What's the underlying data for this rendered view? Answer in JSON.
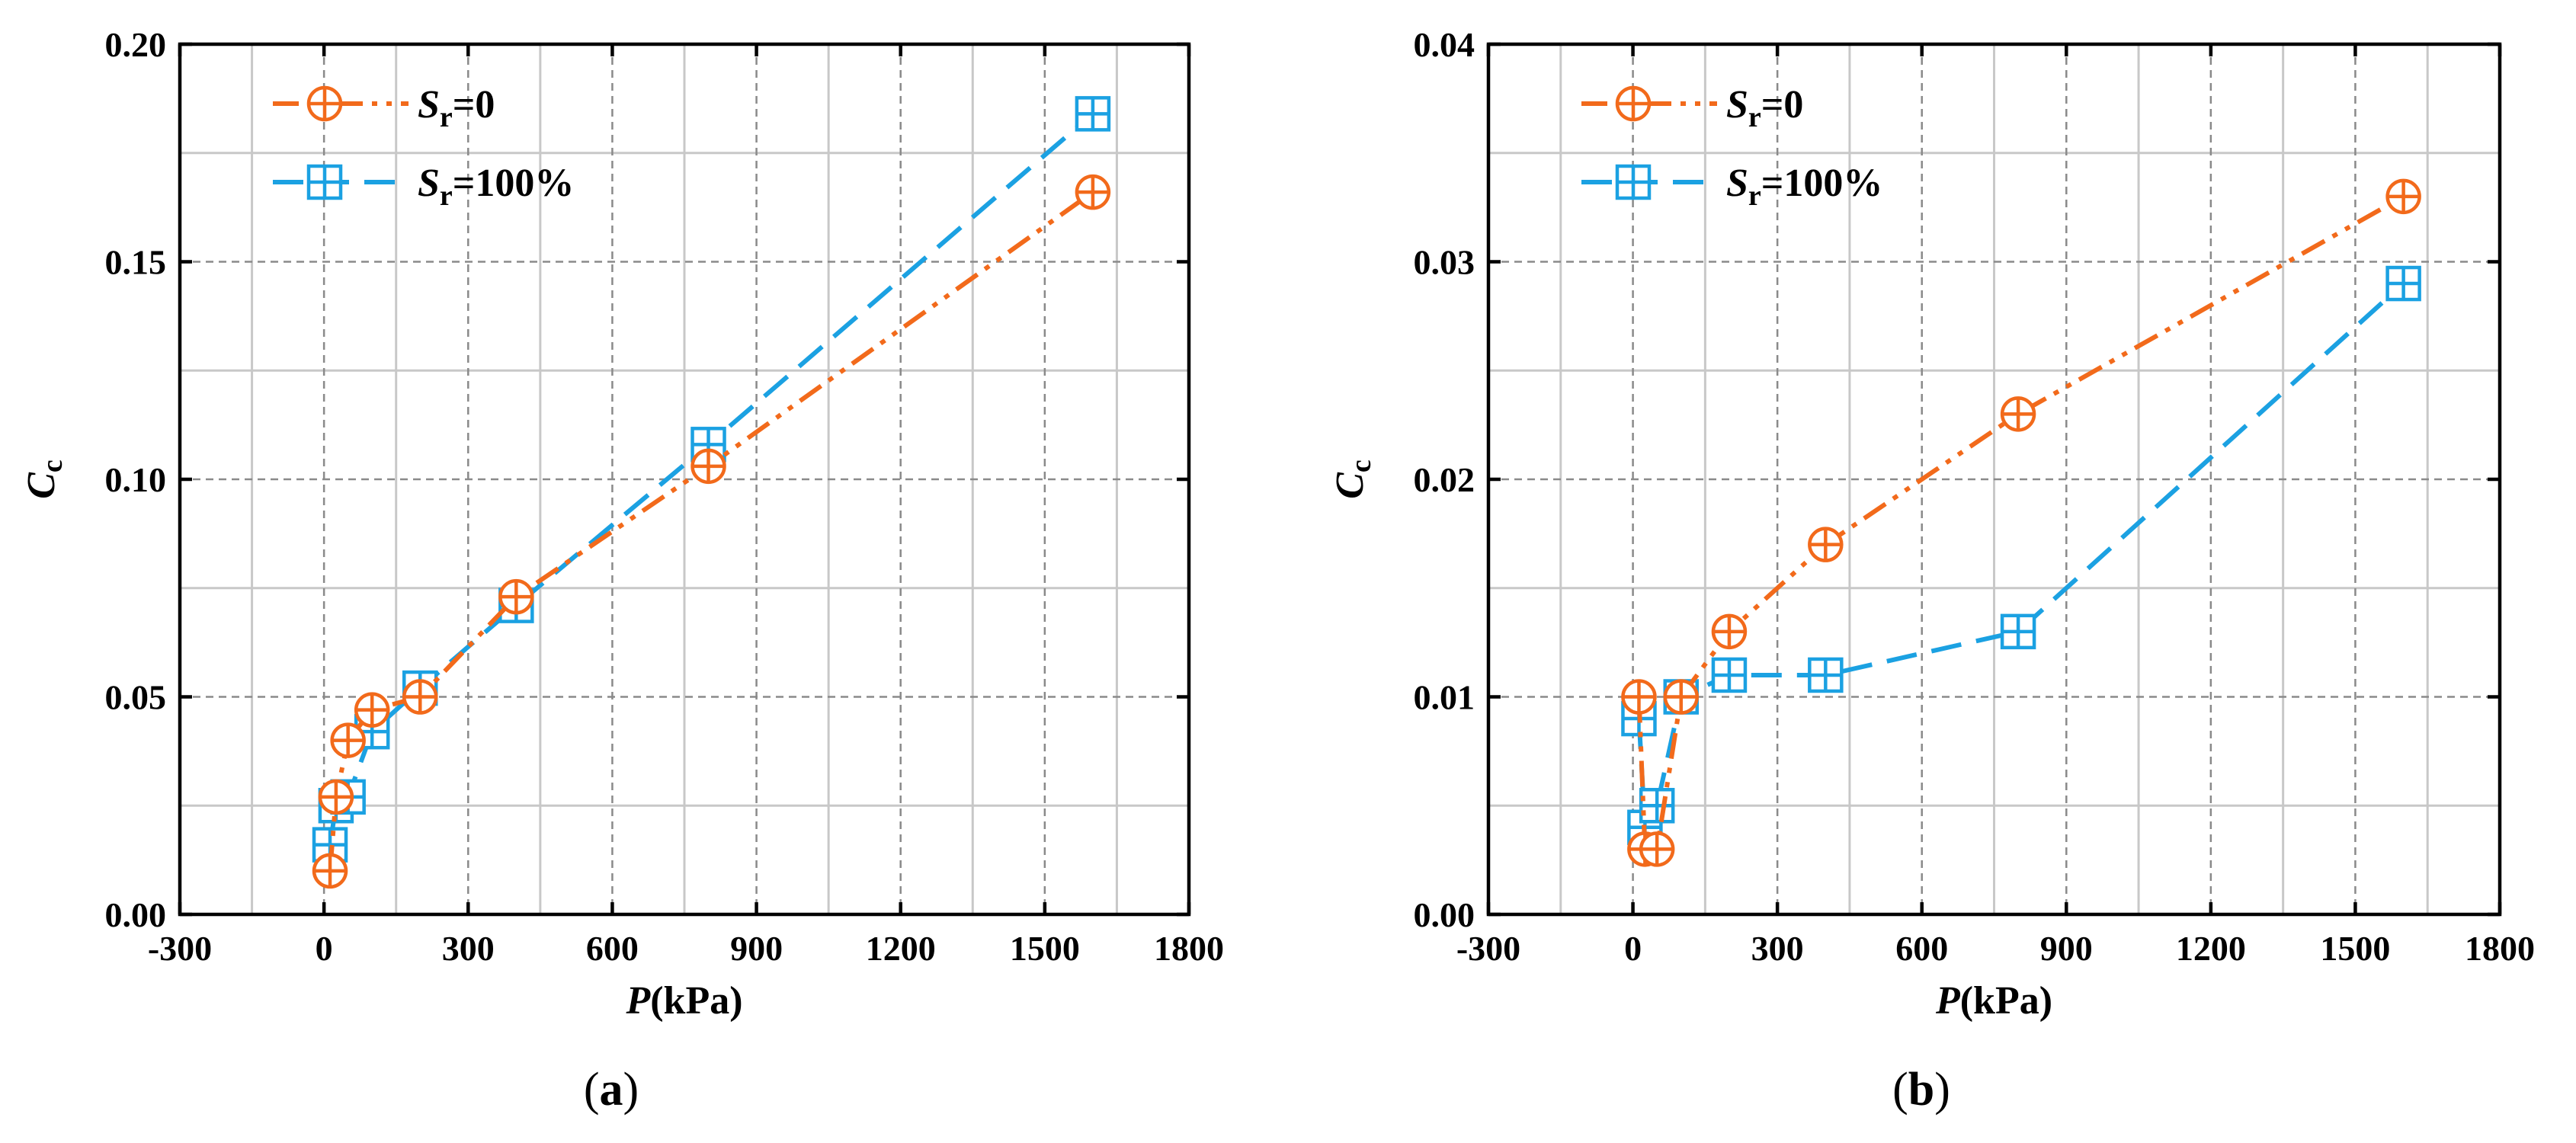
{
  "chart_data": [
    {
      "type": "line",
      "panel_label": "a",
      "ylabel": {
        "symbol": "C",
        "subscript": "c"
      },
      "xlabel": {
        "symbol": "P",
        "unit": "(kPa)"
      },
      "xlim": [
        -300,
        1800
      ],
      "ylim": [
        0,
        0.2
      ],
      "xticks": [
        "-300",
        "0",
        "300",
        "600",
        "900",
        "1200",
        "1500",
        "1800"
      ],
      "yticks": [
        "0.00",
        "0.05",
        "0.10",
        "0.15",
        "0.20"
      ],
      "grid": true,
      "legend_position": "top-left",
      "series": [
        {
          "name": "Sr=0",
          "legend": {
            "symbol": "S",
            "subscript": "r",
            "suffix": "=0"
          },
          "color": "#f26a1b",
          "marker": "circle-plus",
          "line_style": "dash-dot-dot",
          "x": [
            12.5,
            25,
            50,
            100,
            200,
            400,
            800,
            1600
          ],
          "y": [
            0.01,
            0.027,
            0.04,
            0.047,
            0.05,
            0.073,
            0.103,
            0.166
          ]
        },
        {
          "name": "Sr=100%",
          "legend": {
            "symbol": "S",
            "subscript": "r",
            "suffix": "=100%"
          },
          "color": "#1ba1e2",
          "marker": "square-plus",
          "line_style": "dash",
          "x": [
            12.5,
            25,
            50,
            100,
            200,
            400,
            800,
            1600
          ],
          "y": [
            0.016,
            0.025,
            0.027,
            0.042,
            0.052,
            0.071,
            0.108,
            0.184
          ]
        }
      ]
    },
    {
      "type": "line",
      "panel_label": "b",
      "ylabel": {
        "symbol": "C",
        "subscript": "c"
      },
      "xlabel": {
        "symbol": "P",
        "unit": "(kPa)"
      },
      "xlim": [
        -300,
        1800
      ],
      "ylim": [
        0,
        0.04
      ],
      "xticks": [
        "-300",
        "0",
        "300",
        "600",
        "900",
        "1200",
        "1500",
        "1800"
      ],
      "yticks": [
        "0.00",
        "0.01",
        "0.02",
        "0.03",
        "0.04"
      ],
      "grid": true,
      "legend_position": "top-left",
      "series": [
        {
          "name": "Sr=0",
          "legend": {
            "symbol": "S",
            "subscript": "r",
            "suffix": "=0"
          },
          "color": "#f26a1b",
          "marker": "circle-plus",
          "line_style": "dash-dot-dot",
          "x": [
            12.5,
            25,
            50,
            100,
            200,
            400,
            800,
            1600
          ],
          "y": [
            0.01,
            0.003,
            0.003,
            0.01,
            0.013,
            0.017,
            0.023,
            0.033
          ]
        },
        {
          "name": "Sr=100%",
          "legend": {
            "symbol": "S",
            "subscript": "r",
            "suffix": "=100%"
          },
          "color": "#1ba1e2",
          "marker": "square-plus",
          "line_style": "dash",
          "x": [
            12.5,
            25,
            50,
            100,
            200,
            400,
            800,
            1600
          ],
          "y": [
            0.009,
            0.004,
            0.005,
            0.01,
            0.011,
            0.011,
            0.013,
            0.029
          ]
        }
      ]
    }
  ]
}
